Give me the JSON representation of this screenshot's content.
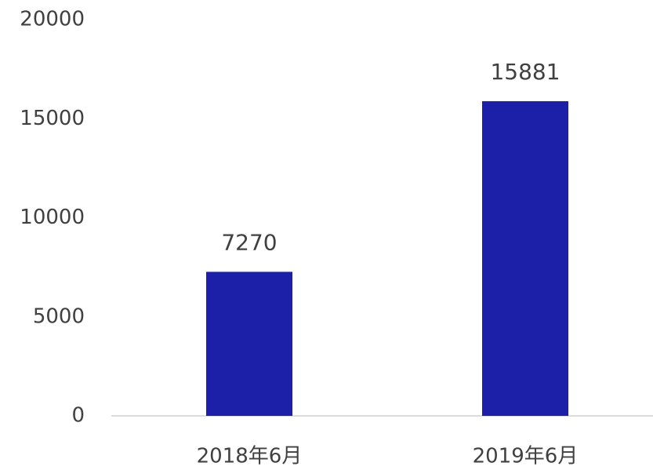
{
  "chart_data": {
    "type": "bar",
    "categories": [
      "2018年6月",
      "2019年6月"
    ],
    "values": [
      7270,
      15881
    ],
    "color": "#1c1fa8",
    "ylim": [
      0,
      20000
    ],
    "yticks": [
      0,
      5000,
      10000,
      15000,
      20000
    ],
    "grid": false
  }
}
